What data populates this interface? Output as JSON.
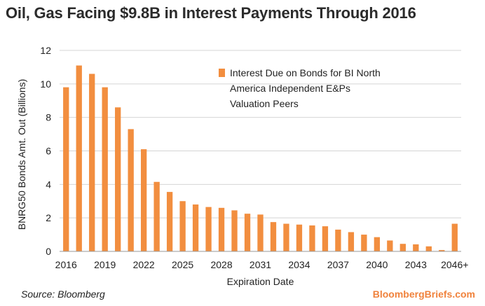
{
  "title": "Oil, Gas Facing $9.8B in Interest Payments Through 2016",
  "source": "Source: Bloomberg",
  "brand": "BloombergBriefs.com",
  "colors": {
    "bar": "#f28e3f",
    "grid": "#d4d4d4",
    "axis": "#9a9a9a",
    "brand": "#f0823c"
  },
  "chart_data": {
    "type": "bar",
    "xlabel": "Expiration Date",
    "ylabel": "BNRG50 Bonds Amt. Out (Billions)",
    "ylim": [
      0,
      12
    ],
    "yticks": [
      0,
      2,
      4,
      6,
      8,
      10,
      12
    ],
    "grid": true,
    "legend_position": "top-right",
    "categories": [
      "2016",
      "2017",
      "2018",
      "2019",
      "2020",
      "2021",
      "2022",
      "2023",
      "2024",
      "2025",
      "2026",
      "2027",
      "2028",
      "2029",
      "2030",
      "2031",
      "2032",
      "2033",
      "2034",
      "2035",
      "2036",
      "2037",
      "2038",
      "2039",
      "2040",
      "2041",
      "2042",
      "2043",
      "2044",
      "2045",
      "2046+"
    ],
    "x_tick_labels": [
      "2016",
      "2019",
      "2022",
      "2025",
      "2028",
      "2031",
      "2034",
      "2037",
      "2040",
      "2043",
      "2046+"
    ],
    "series": [
      {
        "name": "Interest Due on Bonds for BI North America Independent E&Ps Valuation Peers",
        "legend_lines": [
          "Interest Due on Bonds for BI North",
          "America Independent E&Ps",
          "Valuation Peers"
        ],
        "values": [
          9.8,
          11.1,
          10.6,
          9.8,
          8.6,
          7.3,
          6.1,
          4.15,
          3.55,
          3.0,
          2.8,
          2.65,
          2.6,
          2.45,
          2.25,
          2.2,
          1.75,
          1.65,
          1.6,
          1.55,
          1.5,
          1.3,
          1.15,
          1.0,
          0.85,
          0.65,
          0.45,
          0.42,
          0.3,
          0.08,
          1.65
        ]
      }
    ]
  }
}
